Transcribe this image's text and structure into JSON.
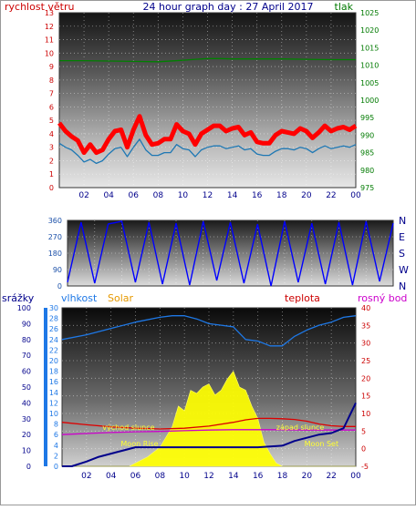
{
  "chart_data": [
    {
      "type": "line",
      "title": "24 hour graph day : 27 April 2017",
      "left_axis_label": "rychlost větru",
      "right_axis_label": "tlak",
      "x_ticks": [
        "02",
        "04",
        "06",
        "08",
        "10",
        "12",
        "14",
        "16",
        "18",
        "20",
        "22",
        "00"
      ],
      "left_ticks": [
        "0",
        "1",
        "2",
        "3",
        "4",
        "5",
        "6",
        "7",
        "8",
        "9",
        "10",
        "11",
        "12",
        "13"
      ],
      "right_ticks": [
        "975",
        "980",
        "985",
        "990",
        "995",
        "1000",
        "1005",
        "1010",
        "1015",
        "1020",
        "1025"
      ],
      "left_ylim": [
        0,
        13
      ],
      "right_ylim": [
        975,
        1025
      ],
      "grid": true,
      "series": [
        {
          "name": "wind gust",
          "axis": "left",
          "color": "#ff0000",
          "x": [
            0,
            0.5,
            1,
            1.5,
            2,
            2.5,
            3,
            3.5,
            4,
            4.5,
            5,
            5.5,
            6,
            6.5,
            7,
            7.5,
            8,
            8.5,
            9,
            9.5,
            10,
            10.5,
            11,
            11.5,
            12,
            12.5,
            13,
            13.5,
            14,
            14.5,
            15,
            15.5,
            16,
            16.5,
            17,
            17.5,
            18,
            18.5,
            19,
            19.5,
            20,
            20.5,
            21,
            21.5,
            22,
            22.5,
            23,
            23.5,
            24
          ],
          "y": [
            4.8,
            4.2,
            3.8,
            3.5,
            2.6,
            3.2,
            2.6,
            2.8,
            3.6,
            4.2,
            4.3,
            3.0,
            4.3,
            5.3,
            3.9,
            3.2,
            3.3,
            3.6,
            3.6,
            4.7,
            4.2,
            4.0,
            3.2,
            4.0,
            4.3,
            4.6,
            4.6,
            4.2,
            4.4,
            4.5,
            3.9,
            4.1,
            3.4,
            3.3,
            3.3,
            3.9,
            4.2,
            4.1,
            4.0,
            4.4,
            4.2,
            3.7,
            4.1,
            4.6,
            4.2,
            4.4,
            4.5,
            4.3,
            4.6
          ]
        },
        {
          "name": "wind speed",
          "axis": "left",
          "color": "#1e78b4",
          "x": [
            0,
            0.5,
            1,
            1.5,
            2,
            2.5,
            3,
            3.5,
            4,
            4.5,
            5,
            5.5,
            6,
            6.5,
            7,
            7.5,
            8,
            8.5,
            9,
            9.5,
            10,
            10.5,
            11,
            11.5,
            12,
            12.5,
            13,
            13.5,
            14,
            14.5,
            15,
            15.5,
            16,
            16.5,
            17,
            17.5,
            18,
            18.5,
            19,
            19.5,
            20,
            20.5,
            21,
            21.5,
            22,
            22.5,
            23,
            23.5,
            24
          ],
          "y": [
            3.3,
            3.0,
            2.8,
            2.4,
            1.9,
            2.1,
            1.8,
            2.0,
            2.5,
            2.9,
            3.0,
            2.3,
            3.0,
            3.6,
            2.8,
            2.4,
            2.4,
            2.6,
            2.6,
            3.2,
            2.9,
            2.8,
            2.3,
            2.8,
            3.0,
            3.1,
            3.1,
            2.9,
            3.0,
            3.1,
            2.8,
            2.9,
            2.5,
            2.4,
            2.4,
            2.7,
            2.9,
            2.9,
            2.8,
            3.0,
            2.9,
            2.6,
            2.9,
            3.1,
            2.9,
            3.0,
            3.1,
            3.0,
            3.2
          ]
        },
        {
          "name": "pressure",
          "axis": "right",
          "color": "#008000",
          "x": [
            0,
            2,
            4,
            6,
            8,
            10,
            11,
            12,
            13,
            14,
            16,
            18,
            20,
            22,
            24
          ],
          "y": [
            1011.3,
            1011.3,
            1011.2,
            1011.1,
            1011.0,
            1011.4,
            1011.7,
            1011.9,
            1011.9,
            1011.8,
            1011.8,
            1011.8,
            1011.7,
            1011.6,
            1011.6
          ]
        }
      ]
    },
    {
      "type": "line",
      "title": "",
      "ylim": [
        0,
        360
      ],
      "y_ticks": [
        "0",
        "90",
        "180",
        "270",
        "360"
      ],
      "x_ticks": [
        "02",
        "04",
        "06",
        "08",
        "10",
        "12",
        "14",
        "16",
        "18",
        "20",
        "22",
        "00"
      ],
      "compass_labels": [
        "N",
        "W",
        "S",
        "E",
        "N"
      ],
      "grid": true,
      "series": [
        {
          "name": "wind direction",
          "color": "#0000ff",
          "x": [
            0,
            1,
            2,
            3,
            4,
            5,
            6,
            7,
            8,
            9,
            10,
            11,
            12,
            13,
            14,
            15,
            16,
            17,
            18,
            19,
            20,
            21,
            22,
            23,
            24
          ],
          "y": [
            20,
            350,
            15,
            340,
            355,
            20,
            350,
            10,
            345,
            5,
            355,
            30,
            350,
            15,
            340,
            0,
            355,
            20,
            345,
            10,
            350,
            5,
            355,
            25,
            345
          ]
        }
      ]
    },
    {
      "type": "line",
      "title": "",
      "axis_labels": {
        "rain": "srážky",
        "humidity": "vlhkost",
        "solar": "Solar",
        "temperature": "teplota",
        "dewpoint": "rosný bod"
      },
      "annotations": [
        "východ slunce",
        "západ slunce",
        "Moon Rise",
        "Moon Set"
      ],
      "x_ticks": [
        "02",
        "04",
        "06",
        "08",
        "10",
        "12",
        "14",
        "16",
        "18",
        "20",
        "22",
        "00"
      ],
      "rain_ticks": [
        "0",
        "10",
        "20",
        "30",
        "40",
        "50",
        "60",
        "70",
        "80",
        "90",
        "100"
      ],
      "humidity_ticks": [
        "0",
        "2",
        "4",
        "6",
        "8",
        "10",
        "12",
        "14",
        "16",
        "18",
        "20",
        "22",
        "24",
        "26",
        "28",
        "30"
      ],
      "temp_ticks": [
        "-5",
        "0",
        "5",
        "10",
        "15",
        "20",
        "25",
        "30",
        "35",
        "40"
      ],
      "ylim_humidity": [
        0,
        100
      ],
      "ylim_temperature": [
        -5,
        40
      ],
      "grid": true,
      "series": [
        {
          "name": "humidity",
          "axis": "rain",
          "color": "#1e78e6",
          "x": [
            0,
            2,
            4,
            6,
            8,
            9,
            10,
            11,
            12,
            13,
            14,
            15,
            16,
            17,
            18,
            19,
            20,
            21,
            22,
            23,
            24
          ],
          "y": [
            80,
            83,
            87,
            91,
            94,
            95,
            95,
            93,
            90,
            89,
            88,
            80,
            79,
            76,
            76,
            82,
            86,
            89,
            91,
            94,
            95
          ]
        },
        {
          "name": "temperature",
          "axis": "temp",
          "color": "#dd0000",
          "x": [
            0,
            2,
            4,
            6,
            8,
            10,
            12,
            14,
            15,
            16,
            17,
            18,
            19,
            20,
            21,
            22,
            23,
            24
          ],
          "y": [
            7.5,
            6.8,
            6.2,
            5.8,
            5.6,
            5.8,
            6.4,
            7.5,
            8.2,
            8.6,
            8.6,
            8.5,
            8.3,
            7.8,
            7.0,
            6.5,
            6.3,
            6.3
          ]
        },
        {
          "name": "dewpoint",
          "axis": "temp",
          "color": "#cc00cc",
          "x": [
            0,
            2,
            4,
            6,
            8,
            10,
            12,
            14,
            16,
            18,
            20,
            22,
            24
          ],
          "y": [
            4.0,
            4.3,
            4.6,
            4.8,
            4.9,
            5.1,
            5.3,
            5.4,
            5.4,
            5.4,
            5.3,
            5.3,
            5.3
          ]
        },
        {
          "name": "rain",
          "axis": "rain",
          "color": "#00008b",
          "x": [
            0,
            0.8,
            2,
            3,
            4,
            5,
            6,
            7,
            8,
            10,
            12,
            14,
            16,
            18,
            19,
            20,
            21,
            22,
            23,
            24
          ],
          "y": [
            0,
            0,
            3,
            6,
            8,
            10,
            12,
            12,
            12,
            12,
            12,
            12,
            12,
            13,
            16,
            18,
            20,
            21,
            24,
            40
          ]
        },
        {
          "name": "solar",
          "axis": "rain",
          "color": "#ffff00",
          "x": [
            0,
            5.5,
            6,
            7,
            8,
            9,
            9.5,
            10,
            10.5,
            11,
            11.5,
            12,
            12.5,
            13,
            13.5,
            14,
            14.5,
            15,
            15.5,
            16,
            16.5,
            17,
            17.5,
            18,
            24
          ],
          "y": [
            0,
            0,
            2,
            6,
            12,
            25,
            38,
            35,
            48,
            46,
            50,
            52,
            45,
            48,
            55,
            60,
            50,
            48,
            38,
            30,
            15,
            8,
            2,
            0,
            0
          ]
        }
      ]
    }
  ]
}
